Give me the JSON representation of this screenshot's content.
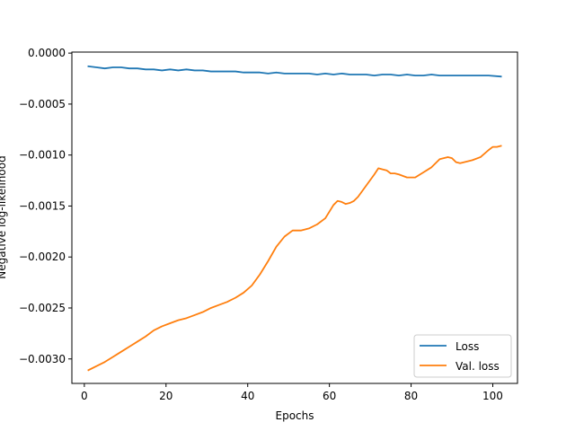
{
  "chart_data": {
    "type": "line",
    "title": "",
    "xlabel": "Epochs",
    "ylabel": "Negative log-likelihood",
    "xlim": [
      -3.05,
      106.05
    ],
    "ylim": [
      -0.00324,
      1e-05
    ],
    "xticks": [
      0,
      20,
      40,
      60,
      80,
      100
    ],
    "xtick_labels": [
      "0",
      "20",
      "40",
      "60",
      "80",
      "100"
    ],
    "yticks": [
      0.0,
      -0.0005,
      -0.001,
      -0.0015,
      -0.002,
      -0.0025,
      -0.003
    ],
    "ytick_labels": [
      "0.0000",
      "−0.0005",
      "−0.0010",
      "−0.0015",
      "−0.0020",
      "−0.0025",
      "−0.0030"
    ],
    "grid": false,
    "legend_position": "lower-right",
    "series": [
      {
        "name": "Loss",
        "color": "#1f77b4",
        "x": [
          1,
          3,
          5,
          7,
          9,
          11,
          13,
          15,
          17,
          19,
          21,
          23,
          25,
          27,
          29,
          31,
          33,
          35,
          37,
          39,
          41,
          43,
          45,
          47,
          49,
          51,
          53,
          55,
          57,
          59,
          61,
          63,
          65,
          67,
          69,
          71,
          73,
          75,
          77,
          79,
          81,
          83,
          85,
          87,
          89,
          91,
          93,
          95,
          97,
          99,
          102
        ],
        "values": [
          -0.00013,
          -0.00014,
          -0.00015,
          -0.00014,
          -0.00014,
          -0.00015,
          -0.00015,
          -0.00016,
          -0.00016,
          -0.00017,
          -0.00016,
          -0.00017,
          -0.00016,
          -0.00017,
          -0.00017,
          -0.00018,
          -0.00018,
          -0.00018,
          -0.00018,
          -0.00019,
          -0.00019,
          -0.00019,
          -0.0002,
          -0.00019,
          -0.0002,
          -0.0002,
          -0.0002,
          -0.0002,
          -0.00021,
          -0.0002,
          -0.00021,
          -0.0002,
          -0.00021,
          -0.00021,
          -0.00021,
          -0.00022,
          -0.00021,
          -0.00021,
          -0.00022,
          -0.00021,
          -0.00022,
          -0.00022,
          -0.00021,
          -0.00022,
          -0.00022,
          -0.00022,
          -0.00022,
          -0.00022,
          -0.00022,
          -0.00022,
          -0.00023
        ]
      },
      {
        "name": "Val. loss",
        "color": "#ff7f0e",
        "x": [
          1,
          3,
          5,
          7,
          9,
          11,
          13,
          15,
          17,
          19,
          21,
          23,
          25,
          27,
          29,
          31,
          33,
          35,
          37,
          39,
          41,
          43,
          45,
          47,
          49,
          51,
          53,
          55,
          57,
          59,
          61,
          62,
          63,
          64,
          65,
          66,
          67,
          69,
          71,
          72,
          73,
          74,
          75,
          76,
          77,
          79,
          81,
          83,
          85,
          87,
          88,
          89,
          90,
          91,
          92,
          93,
          95,
          97,
          99,
          100,
          101,
          102
        ],
        "values": [
          -0.00311,
          -0.00307,
          -0.00303,
          -0.00298,
          -0.00293,
          -0.00288,
          -0.00283,
          -0.00278,
          -0.00272,
          -0.00268,
          -0.00265,
          -0.00262,
          -0.0026,
          -0.00257,
          -0.00254,
          -0.0025,
          -0.00247,
          -0.00244,
          -0.0024,
          -0.00235,
          -0.00228,
          -0.00217,
          -0.00204,
          -0.0019,
          -0.0018,
          -0.00174,
          -0.00174,
          -0.00172,
          -0.00168,
          -0.00162,
          -0.00149,
          -0.00145,
          -0.00146,
          -0.00148,
          -0.00147,
          -0.00145,
          -0.00141,
          -0.0013,
          -0.00119,
          -0.00113,
          -0.00114,
          -0.00115,
          -0.00118,
          -0.00118,
          -0.00119,
          -0.00122,
          -0.00122,
          -0.00117,
          -0.00112,
          -0.00104,
          -0.00103,
          -0.00102,
          -0.00103,
          -0.00107,
          -0.00108,
          -0.00107,
          -0.00105,
          -0.00102,
          -0.00095,
          -0.00092,
          -0.00092,
          -0.00091
        ]
      }
    ]
  }
}
